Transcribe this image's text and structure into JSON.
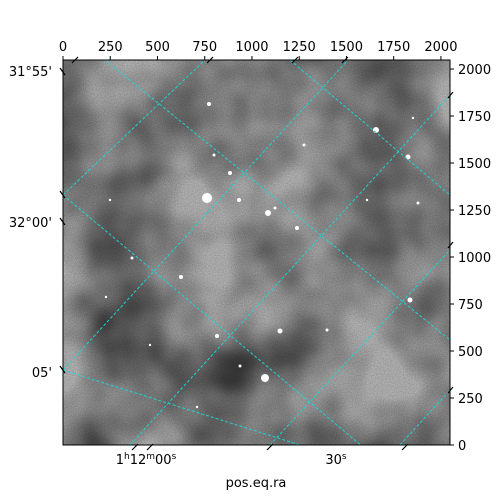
{
  "chart_data": {
    "type": "image",
    "xlabel": "pos.eq.ra",
    "ylabel": "",
    "pixel_axes": {
      "xlim": [
        0,
        2048
      ],
      "ylim": [
        0,
        2048
      ],
      "x_ticks": [
        "0",
        "250",
        "500",
        "750",
        "1000",
        "1250",
        "1500",
        "1750",
        "2000"
      ],
      "y_ticks": [
        "0",
        "250",
        "500",
        "750",
        "1000",
        "1250",
        "1500",
        "1750",
        "2000"
      ]
    },
    "world_axes": {
      "ra_ticks": [
        {
          "label_prefix": "1",
          "label_h": "h",
          "label_num": "12",
          "label_m": "m",
          "label_sec": "00",
          "label_s": "s"
        },
        {
          "label_prefix": "",
          "label_h": "",
          "label_num": "",
          "label_m": "",
          "label_sec": "30",
          "label_s": "s"
        }
      ],
      "dec_ticks": [
        "31°55'",
        "32°00'",
        "05'"
      ]
    },
    "grid_color": "#1fd3d3",
    "colormap": "gray"
  }
}
